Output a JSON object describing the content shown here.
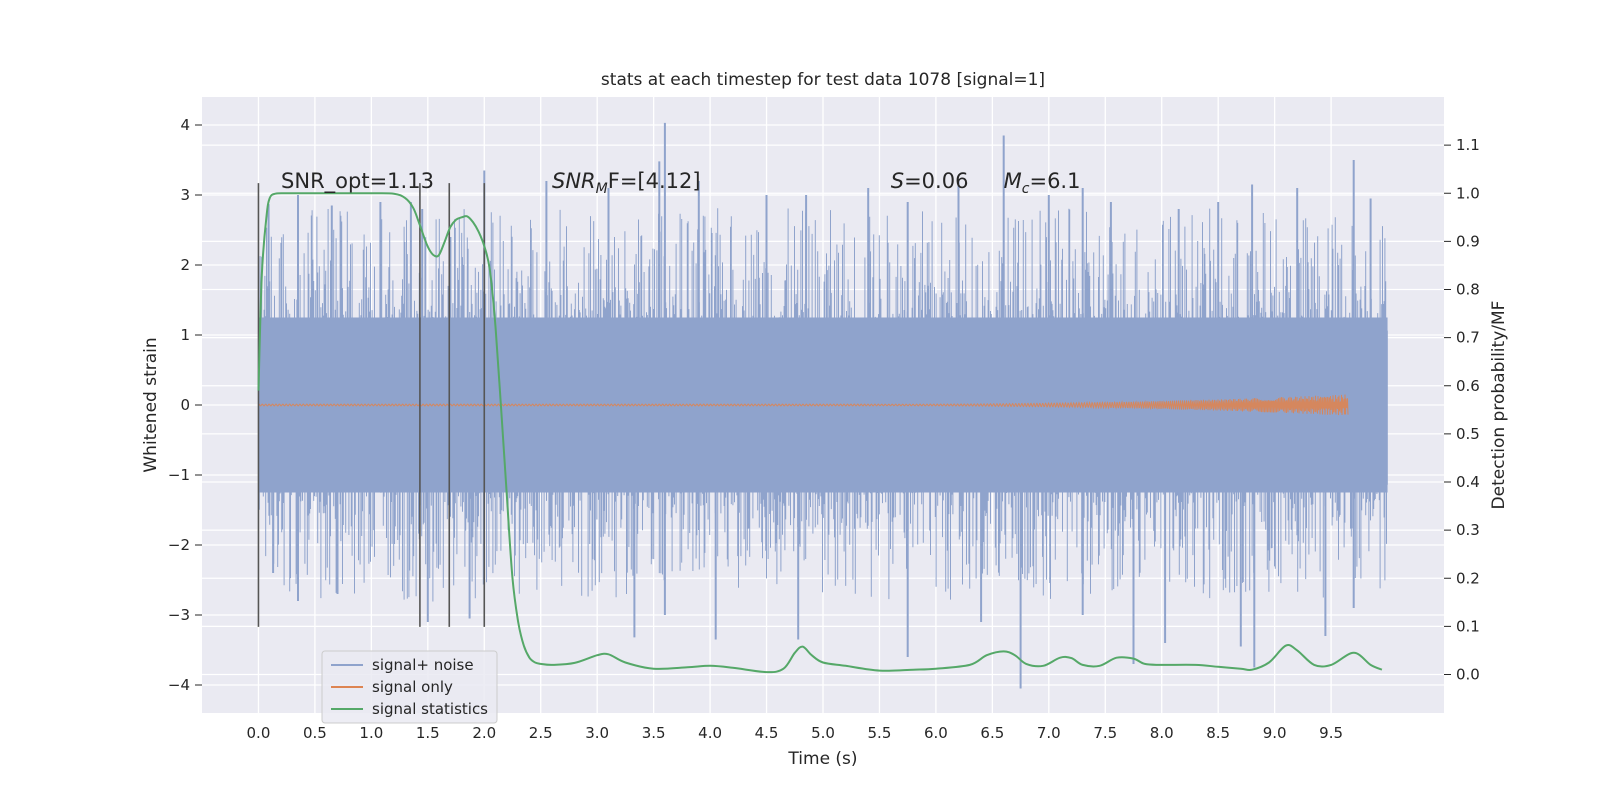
{
  "chart_data": {
    "type": "line",
    "title": "stats at each timestep for test data 1078 [signal=1]",
    "xlabel": "Time (s)",
    "ylabel": "Whitened strain",
    "ylabel_right": "Detection probability/MF",
    "xlim": [
      -0.5,
      10.5
    ],
    "ylim": [
      -4.4,
      4.4
    ],
    "ylim_right": [
      -0.08,
      1.2
    ],
    "xticks": [
      "0.0",
      "0.5",
      "1.0",
      "1.5",
      "2.0",
      "2.5",
      "3.0",
      "3.5",
      "4.0",
      "4.5",
      "5.0",
      "5.5",
      "6.0",
      "6.5",
      "7.0",
      "7.5",
      "8.0",
      "8.5",
      "9.0",
      "9.5"
    ],
    "yticks": [
      "4",
      "3",
      "2",
      "1",
      "0",
      "−1",
      "−2",
      "−3",
      "−4"
    ],
    "yticks_right": [
      "1.1",
      "1.0",
      "0.9",
      "0.8",
      "0.7",
      "0.6",
      "0.5",
      "0.4",
      "0.3",
      "0.2",
      "0.1",
      "0.0"
    ],
    "grid": true,
    "legend_position": "lower-left",
    "annotations": [
      {
        "text": "SNR_opt=1.13",
        "x": 0.2
      },
      {
        "text": "SNR",
        "sub": "M",
        "rest": "F=[4.12]",
        "italic": true,
        "x": 2.6
      },
      {
        "text": "S",
        "rest": "=0.06",
        "italic": true,
        "x": 5.6
      },
      {
        "text": "M",
        "sub": "c",
        "rest": "=6.1",
        "italic": true,
        "x": 6.6
      }
    ],
    "annotation_y": 3.2,
    "vlines": [
      0.0,
      1.43,
      1.69,
      2.0
    ],
    "vline_ylim": [
      -3.17,
      3.17
    ],
    "series": [
      {
        "name": "signal+ noise",
        "color": "#8fa3cc",
        "x_range": [
          0.0,
          10.0
        ],
        "envelope_core": 1.25,
        "peaks_up": [
          [
            0.09,
            2.87
          ],
          [
            0.35,
            3.0
          ],
          [
            0.65,
            2.85
          ],
          [
            1.08,
            2.9
          ],
          [
            1.35,
            2.9
          ],
          [
            1.45,
            2.8
          ],
          [
            1.7,
            2.4
          ],
          [
            2.0,
            3.35
          ],
          [
            2.55,
            3.2
          ],
          [
            3.1,
            3.1
          ],
          [
            3.55,
            3.48
          ],
          [
            3.6,
            4.03
          ],
          [
            3.9,
            3.2
          ],
          [
            4.5,
            3.0
          ],
          [
            4.85,
            3.0
          ],
          [
            5.4,
            3.1
          ],
          [
            5.75,
            2.9
          ],
          [
            6.2,
            3.2
          ],
          [
            6.6,
            3.85
          ],
          [
            7.0,
            3.0
          ],
          [
            7.3,
            3.1
          ],
          [
            7.55,
            2.9
          ],
          [
            8.15,
            2.8
          ],
          [
            8.5,
            2.9
          ],
          [
            8.8,
            3.15
          ],
          [
            9.2,
            3.1
          ],
          [
            9.7,
            3.5
          ],
          [
            9.85,
            2.95
          ]
        ],
        "peaks_down": [
          [
            0.13,
            -2.4
          ],
          [
            0.35,
            -2.8
          ],
          [
            0.7,
            -2.7
          ],
          [
            1.5,
            -3.1
          ],
          [
            1.87,
            -3.05
          ],
          [
            3.33,
            -3.32
          ],
          [
            3.6,
            -3.0
          ],
          [
            4.05,
            -3.35
          ],
          [
            4.78,
            -3.35
          ],
          [
            5.75,
            -3.6
          ],
          [
            6.4,
            -3.1
          ],
          [
            6.75,
            -4.05
          ],
          [
            7.3,
            -3.0
          ],
          [
            7.75,
            -3.7
          ],
          [
            8.03,
            -3.4
          ],
          [
            8.7,
            -3.45
          ],
          [
            8.82,
            -3.75
          ],
          [
            9.45,
            -3.3
          ],
          [
            9.7,
            -2.9
          ]
        ]
      },
      {
        "name": "signal only",
        "color": "#dd8452",
        "x_range": [
          0.0,
          9.65
        ],
        "growth_start": 5.5,
        "max_amplitude": 0.14
      },
      {
        "name": "signal statistics",
        "color": "#55a868",
        "axis": "right",
        "x": [
          0.0,
          0.03,
          0.07,
          0.1,
          0.15,
          0.25,
          0.4,
          0.6,
          0.8,
          1.0,
          1.2,
          1.3,
          1.37,
          1.42,
          1.48,
          1.52,
          1.56,
          1.6,
          1.65,
          1.7,
          1.75,
          1.8,
          1.85,
          1.9,
          1.95,
          2.0,
          2.05,
          2.1,
          2.15,
          2.2,
          2.25,
          2.3,
          2.35,
          2.4,
          2.45,
          2.5,
          2.6,
          2.8,
          3.0,
          3.1,
          3.25,
          3.5,
          3.8,
          4.0,
          4.2,
          4.5,
          4.65,
          4.75,
          4.82,
          4.9,
          5.0,
          5.2,
          5.5,
          5.8,
          6.0,
          6.3,
          6.45,
          6.6,
          6.7,
          6.8,
          6.95,
          7.1,
          7.2,
          7.3,
          7.45,
          7.6,
          7.75,
          7.85,
          8.0,
          8.3,
          8.5,
          8.7,
          8.8,
          8.95,
          9.1,
          9.2,
          9.35,
          9.5,
          9.7,
          9.85,
          9.95
        ],
        "y": [
          0.59,
          0.83,
          0.95,
          0.99,
          0.999,
          1.0,
          1.0,
          1.0,
          1.0,
          1.0,
          0.999,
          0.99,
          0.97,
          0.94,
          0.9,
          0.88,
          0.87,
          0.872,
          0.9,
          0.93,
          0.945,
          0.95,
          0.952,
          0.94,
          0.92,
          0.89,
          0.84,
          0.72,
          0.55,
          0.37,
          0.2,
          0.11,
          0.06,
          0.035,
          0.025,
          0.022,
          0.02,
          0.024,
          0.04,
          0.042,
          0.025,
          0.012,
          0.015,
          0.018,
          0.014,
          0.005,
          0.012,
          0.045,
          0.058,
          0.04,
          0.025,
          0.018,
          0.008,
          0.01,
          0.012,
          0.02,
          0.04,
          0.048,
          0.04,
          0.022,
          0.018,
          0.035,
          0.034,
          0.02,
          0.018,
          0.035,
          0.033,
          0.022,
          0.02,
          0.02,
          0.016,
          0.012,
          0.01,
          0.025,
          0.06,
          0.05,
          0.02,
          0.02,
          0.045,
          0.02,
          0.01
        ]
      }
    ]
  }
}
